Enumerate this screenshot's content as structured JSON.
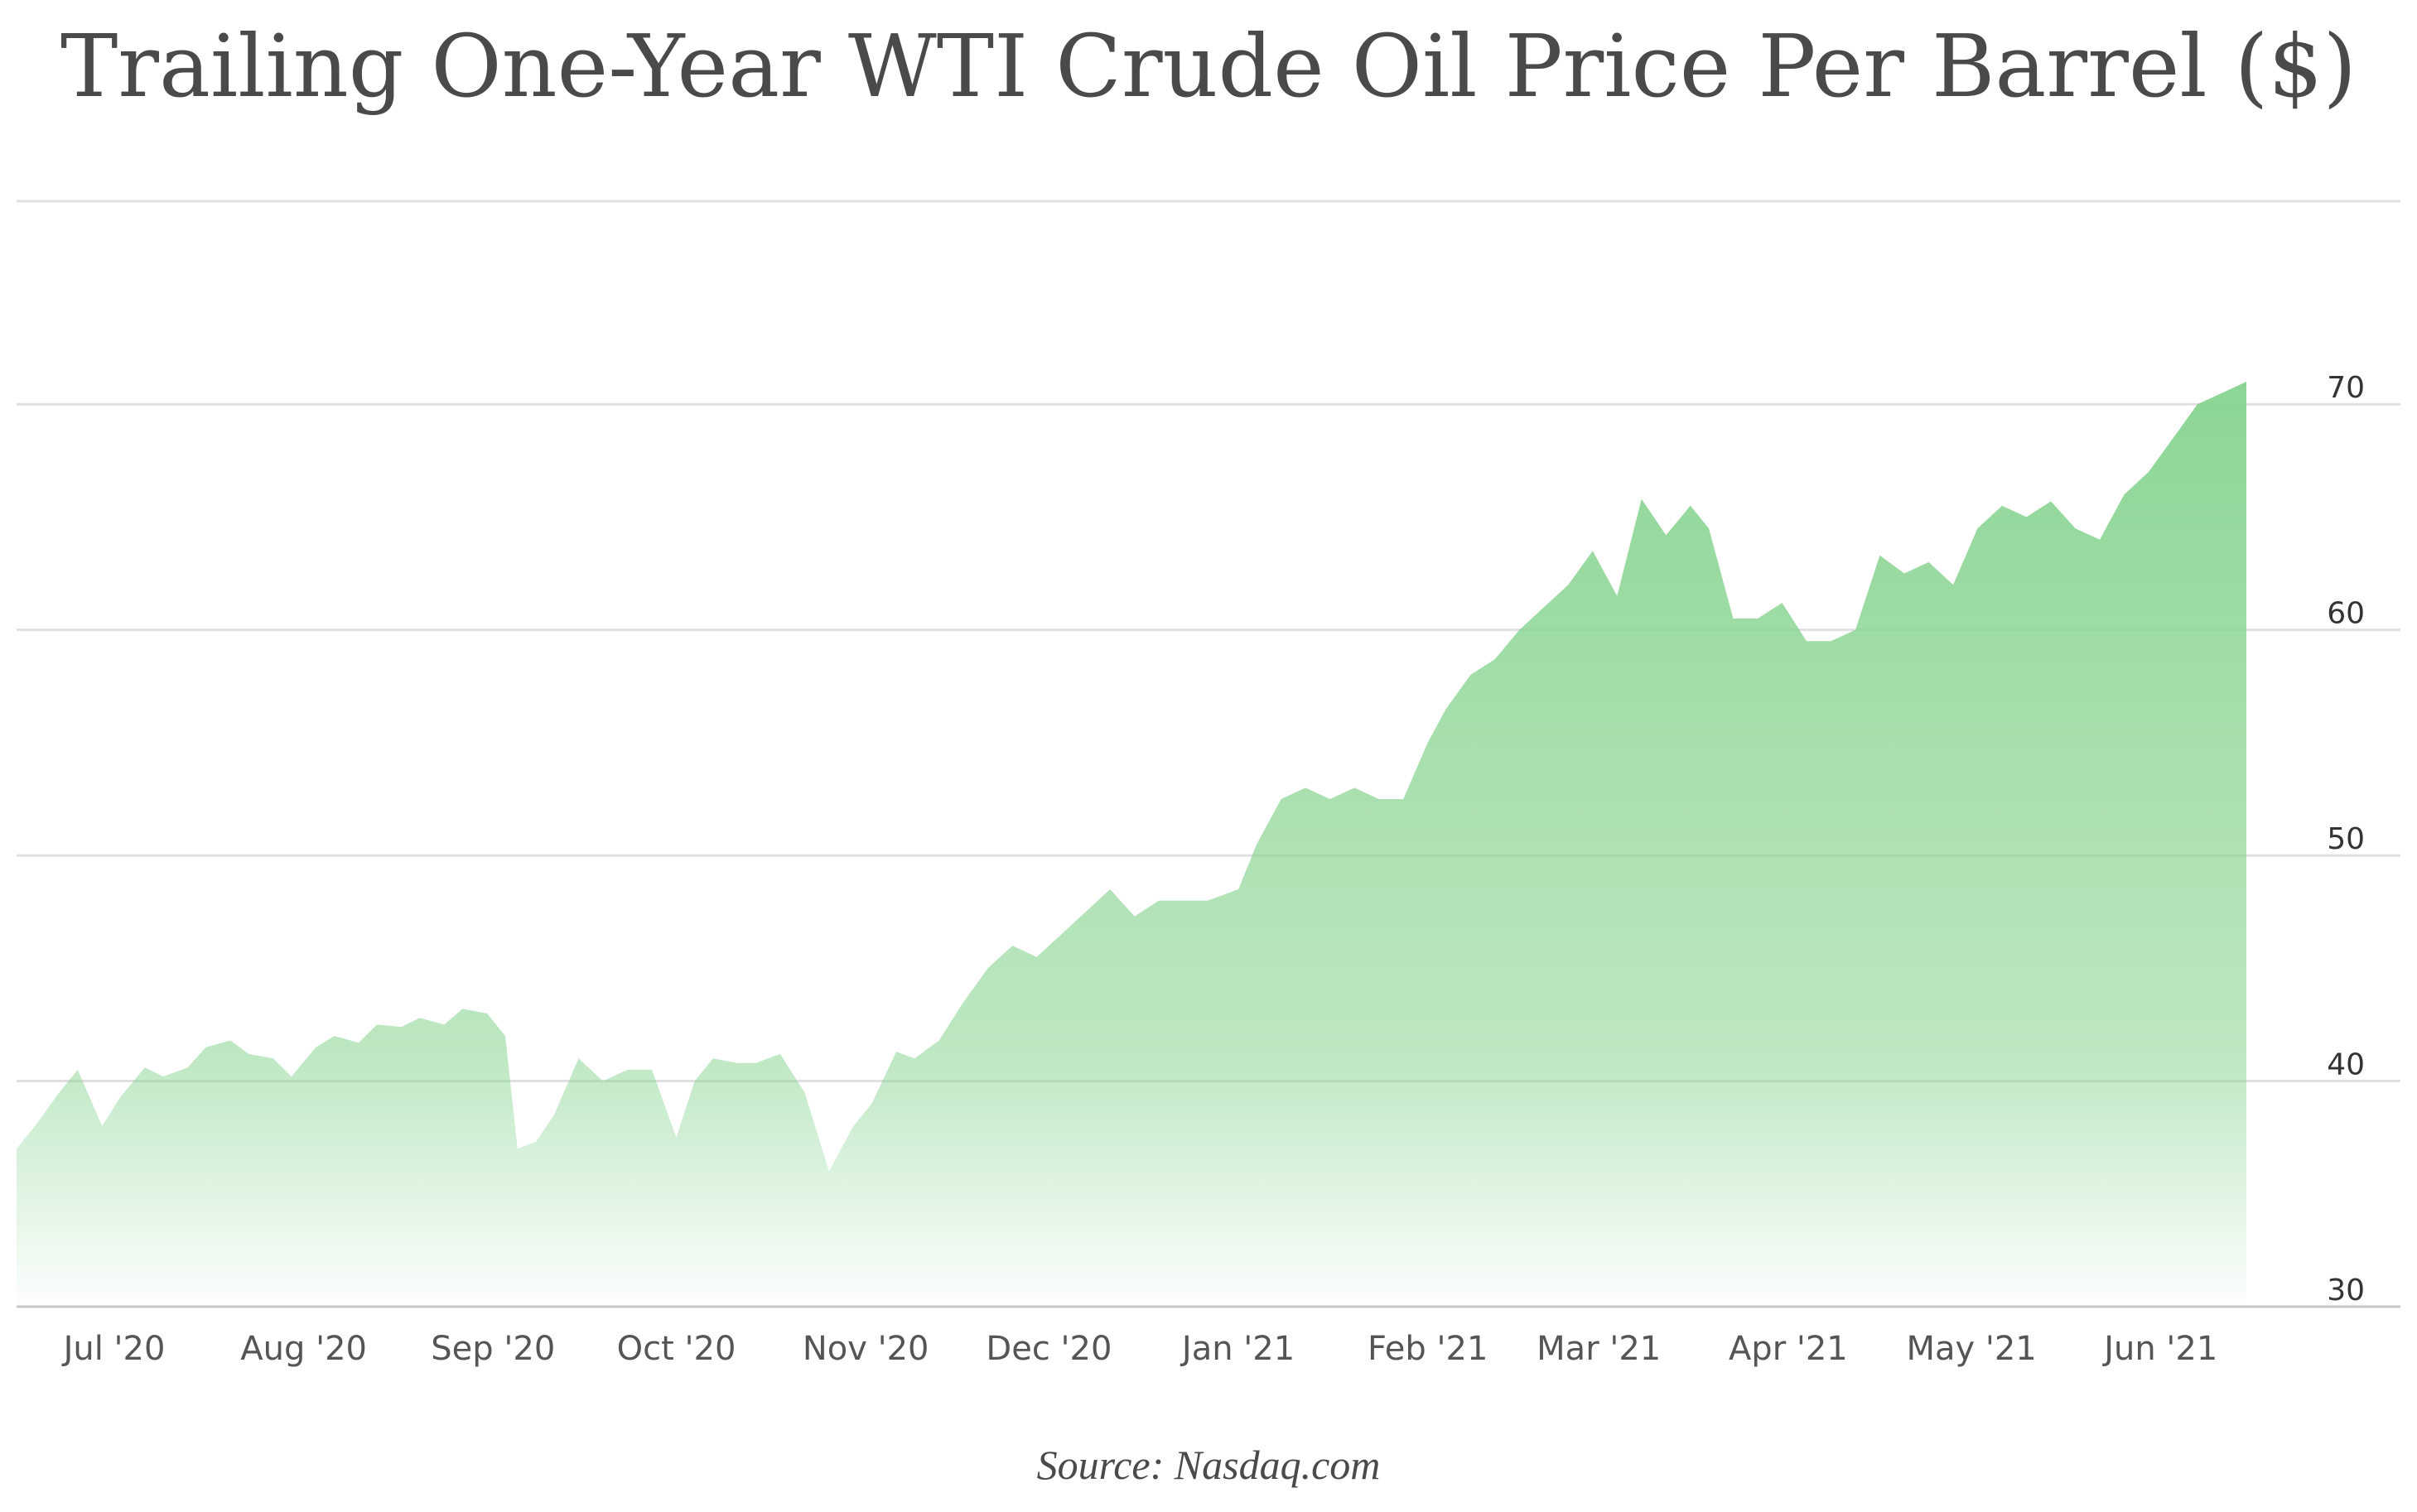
{
  "chart_data": {
    "type": "area",
    "title": "Trailing One-Year WTI Crude Oil Price Per Barrel ($)",
    "source": "Source: Nasdaq.com",
    "ylim": [
      30,
      79
    ],
    "grid": true,
    "legend": "none",
    "fill_color": "#86d38f",
    "y_ticks": [
      "30",
      "40",
      "50",
      "60",
      "70"
    ],
    "x_ticks": [
      "Jul '20",
      "Aug '20",
      "Sep '20",
      "Oct '20",
      "Nov '20",
      "Dec '20",
      "Jan '21",
      "Feb '21",
      "Mar '21",
      "Apr '21",
      "May '21",
      "Jun '21"
    ],
    "series": [
      {
        "x": [
          "2020-06-15",
          "2020-06-18",
          "2020-06-22",
          "2020-06-25",
          "2020-06-29",
          "2020-07-02",
          "2020-07-06",
          "2020-07-09",
          "2020-07-13",
          "2020-07-16",
          "2020-07-20",
          "2020-07-23",
          "2020-07-27",
          "2020-07-30",
          "2020-08-03",
          "2020-08-06",
          "2020-08-10",
          "2020-08-13",
          "2020-08-17",
          "2020-08-20",
          "2020-08-24",
          "2020-08-27",
          "2020-08-31",
          "2020-09-03",
          "2020-09-05",
          "2020-09-08",
          "2020-09-11",
          "2020-09-15",
          "2020-09-19",
          "2020-09-23",
          "2020-09-27",
          "2020-10-01",
          "2020-10-04",
          "2020-10-07",
          "2020-10-11",
          "2020-10-14",
          "2020-10-18",
          "2020-10-22",
          "2020-10-26",
          "2020-10-30",
          "2020-11-02",
          "2020-11-06",
          "2020-11-09",
          "2020-11-13",
          "2020-11-17",
          "2020-11-21",
          "2020-11-25",
          "2020-11-29",
          "2020-12-03",
          "2020-12-07",
          "2020-12-11",
          "2020-12-15",
          "2020-12-19",
          "2020-12-23",
          "2020-12-27",
          "2021-01-01",
          "2021-01-04",
          "2021-01-08",
          "2021-01-12",
          "2021-01-16",
          "2021-01-20",
          "2021-01-24",
          "2021-01-28",
          "2021-02-01",
          "2021-02-04",
          "2021-02-08",
          "2021-02-12",
          "2021-02-16",
          "2021-02-20",
          "2021-02-24",
          "2021-02-28",
          "2021-03-04",
          "2021-03-08",
          "2021-03-12",
          "2021-03-16",
          "2021-03-19",
          "2021-03-23",
          "2021-03-27",
          "2021-03-31",
          "2021-04-04",
          "2021-04-08",
          "2021-04-12",
          "2021-04-16",
          "2021-04-20",
          "2021-04-24",
          "2021-04-28",
          "2021-05-02",
          "2021-05-06",
          "2021-05-10",
          "2021-05-14",
          "2021-05-18",
          "2021-05-22",
          "2021-05-26",
          "2021-05-30",
          "2021-06-03",
          "2021-06-07",
          "2021-06-11",
          "2021-06-15"
        ],
        "values": [
          37,
          38,
          39.5,
          40.5,
          38,
          39.3,
          40.6,
          40.2,
          40.6,
          41.5,
          41.8,
          41.2,
          41,
          40.2,
          41.5,
          42,
          41.7,
          42.5,
          42.4,
          42.8,
          42.5,
          43.2,
          43,
          42,
          37,
          37.3,
          38.5,
          41,
          40,
          40.5,
          40.5,
          37.5,
          40,
          41,
          40.8,
          40.8,
          41.2,
          39.5,
          36,
          38,
          39,
          41.3,
          41,
          41.8,
          43.5,
          45,
          46,
          45.5,
          46.5,
          47.5,
          48.5,
          47.3,
          48,
          48,
          48,
          48.5,
          50.5,
          52.5,
          53,
          52.5,
          53,
          52.5,
          52.5,
          55,
          56.5,
          58,
          58.7,
          60,
          61,
          62,
          63.5,
          61.5,
          65.8,
          64.2,
          65.5,
          64.5,
          60.5,
          60.5,
          61.2,
          59.5,
          59.5,
          60,
          63.3,
          62.5,
          63,
          62,
          64.5,
          65.5,
          65,
          65.7,
          64.5,
          64,
          66,
          67,
          68.5,
          70,
          70.5,
          71
        ]
      }
    ]
  }
}
